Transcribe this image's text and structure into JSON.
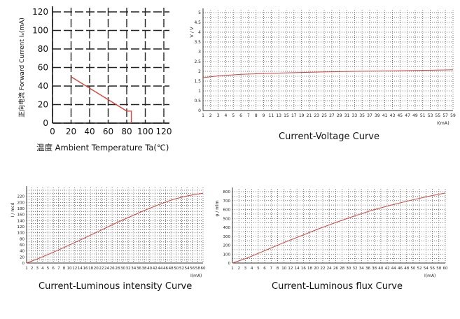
{
  "chart_data": [
    {
      "type": "line",
      "title": "",
      "ylabel": "正向电流 Forward Current Iₐ(mA)",
      "xlabel": "温度 Ambient Temperature Ta(℃)",
      "xlim": [
        0,
        120
      ],
      "ylim": [
        0,
        120
      ],
      "xticks": [
        "0",
        "20",
        "40",
        "60",
        "80",
        "100",
        "120"
      ],
      "yticks": [
        "0",
        "20",
        "40",
        "60",
        "80",
        "100",
        "120"
      ],
      "grid": true,
      "series": [
        {
          "x": [
            20,
            80,
            85,
            85
          ],
          "y": [
            50,
            13,
            13,
            0
          ],
          "color": "#d9433b"
        }
      ]
    },
    {
      "type": "line",
      "title": "",
      "caption": "Current-Voltage Curve",
      "ylabel": "V / V",
      "xlabel": "I(mA)",
      "xlim": [
        1,
        60
      ],
      "ylim": [
        0,
        5
      ],
      "xticks": [
        "1",
        "2",
        "3",
        "4",
        "5",
        "6",
        "7",
        "8",
        "9",
        "11",
        "13",
        "15",
        "17",
        "19",
        "21",
        "23",
        "25",
        "27",
        "29",
        "31",
        "33",
        "35",
        "37",
        "39",
        "41",
        "43",
        "45",
        "47",
        "49",
        "51",
        "53",
        "55",
        "57",
        "59"
      ],
      "yticks": [
        "0",
        "0.5",
        "1",
        "1.5",
        "2",
        "2.5",
        "3",
        "3.5",
        "4",
        "4.5",
        "5"
      ],
      "grid": true,
      "series": [
        {
          "x": [
            1,
            5,
            10,
            20,
            30,
            40,
            50,
            60
          ],
          "y": [
            1.68,
            1.78,
            1.85,
            1.92,
            1.97,
            2.01,
            2.04,
            2.08
          ],
          "color": "#d9433b"
        }
      ]
    },
    {
      "type": "line",
      "title": "",
      "caption": "Current-Luminous intensity Curve",
      "ylabel": "I / mcd",
      "xlabel": "I(mA)",
      "xlim": [
        1,
        60
      ],
      "ylim": [
        0,
        240
      ],
      "xticks": [
        "1",
        "2",
        "3",
        "4",
        "5",
        "6",
        "7",
        "8",
        "10",
        "12",
        "14",
        "16",
        "18",
        "20",
        "22",
        "24",
        "26",
        "28",
        "30",
        "32",
        "34",
        "36",
        "38",
        "40",
        "42",
        "44",
        "46",
        "48",
        "50",
        "52",
        "54",
        "56",
        "58",
        "60"
      ],
      "yticks": [
        "0",
        "20",
        "40",
        "60",
        "80",
        "100",
        "120",
        "140",
        "160",
        "180",
        "200",
        "220"
      ],
      "grid": true,
      "series": [
        {
          "x": [
            1,
            5,
            10,
            15,
            20,
            25,
            30,
            35,
            40,
            45,
            50,
            55,
            60
          ],
          "y": [
            0,
            15,
            36,
            58,
            81,
            104,
            128,
            150,
            172,
            192,
            210,
            222,
            230
          ],
          "color": "#d9433b"
        }
      ]
    },
    {
      "type": "line",
      "title": "",
      "caption": "Current-Luminous flux Curve",
      "ylabel": "φ / mlm",
      "xlabel": "I(mA)",
      "xlim": [
        1,
        60
      ],
      "ylim": [
        0,
        800
      ],
      "xticks": [
        "1",
        "2",
        "3",
        "4",
        "5",
        "6",
        "7",
        "8",
        "10",
        "12",
        "14",
        "16",
        "18",
        "20",
        "22",
        "24",
        "26",
        "28",
        "30",
        "32",
        "34",
        "36",
        "38",
        "40",
        "42",
        "44",
        "46",
        "48",
        "50",
        "52",
        "54",
        "56",
        "58",
        "60"
      ],
      "yticks": [
        "0",
        "100",
        "200",
        "300",
        "400",
        "500",
        "600",
        "700",
        "800"
      ],
      "grid": true,
      "series": [
        {
          "x": [
            1,
            5,
            10,
            15,
            20,
            25,
            30,
            35,
            40,
            45,
            50,
            55,
            60
          ],
          "y": [
            0,
            55,
            140,
            225,
            305,
            385,
            460,
            530,
            595,
            650,
            700,
            745,
            785
          ],
          "color": "#d9433b"
        }
      ]
    }
  ]
}
